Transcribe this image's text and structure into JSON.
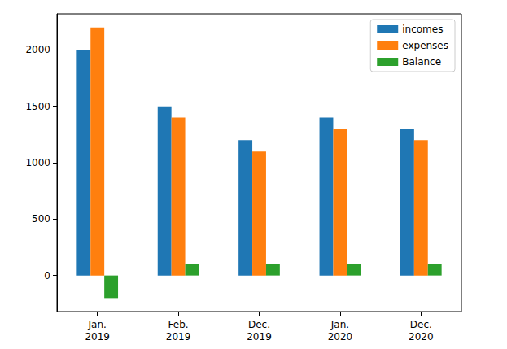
{
  "chart_data": {
    "type": "bar",
    "categories": [
      "Jan.\n2019",
      "Feb.\n2019",
      "Dec.\n2019",
      "Jan.\n2020",
      "Dec.\n2020"
    ],
    "series": [
      {
        "name": "incomes",
        "color": "#1f77b4",
        "values": [
          2000,
          1500,
          1200,
          1400,
          1300
        ]
      },
      {
        "name": "expenses",
        "color": "#ff7f0e",
        "values": [
          2200,
          1400,
          1100,
          1300,
          1200
        ]
      },
      {
        "name": "Balance",
        "color": "#2ca02c",
        "values": [
          -200,
          100,
          100,
          100,
          100
        ]
      }
    ],
    "ylim": [
      -320,
      2320
    ],
    "yticks": [
      0,
      500,
      1000,
      1500,
      2000
    ],
    "grid": false,
    "legend": "upper right"
  }
}
